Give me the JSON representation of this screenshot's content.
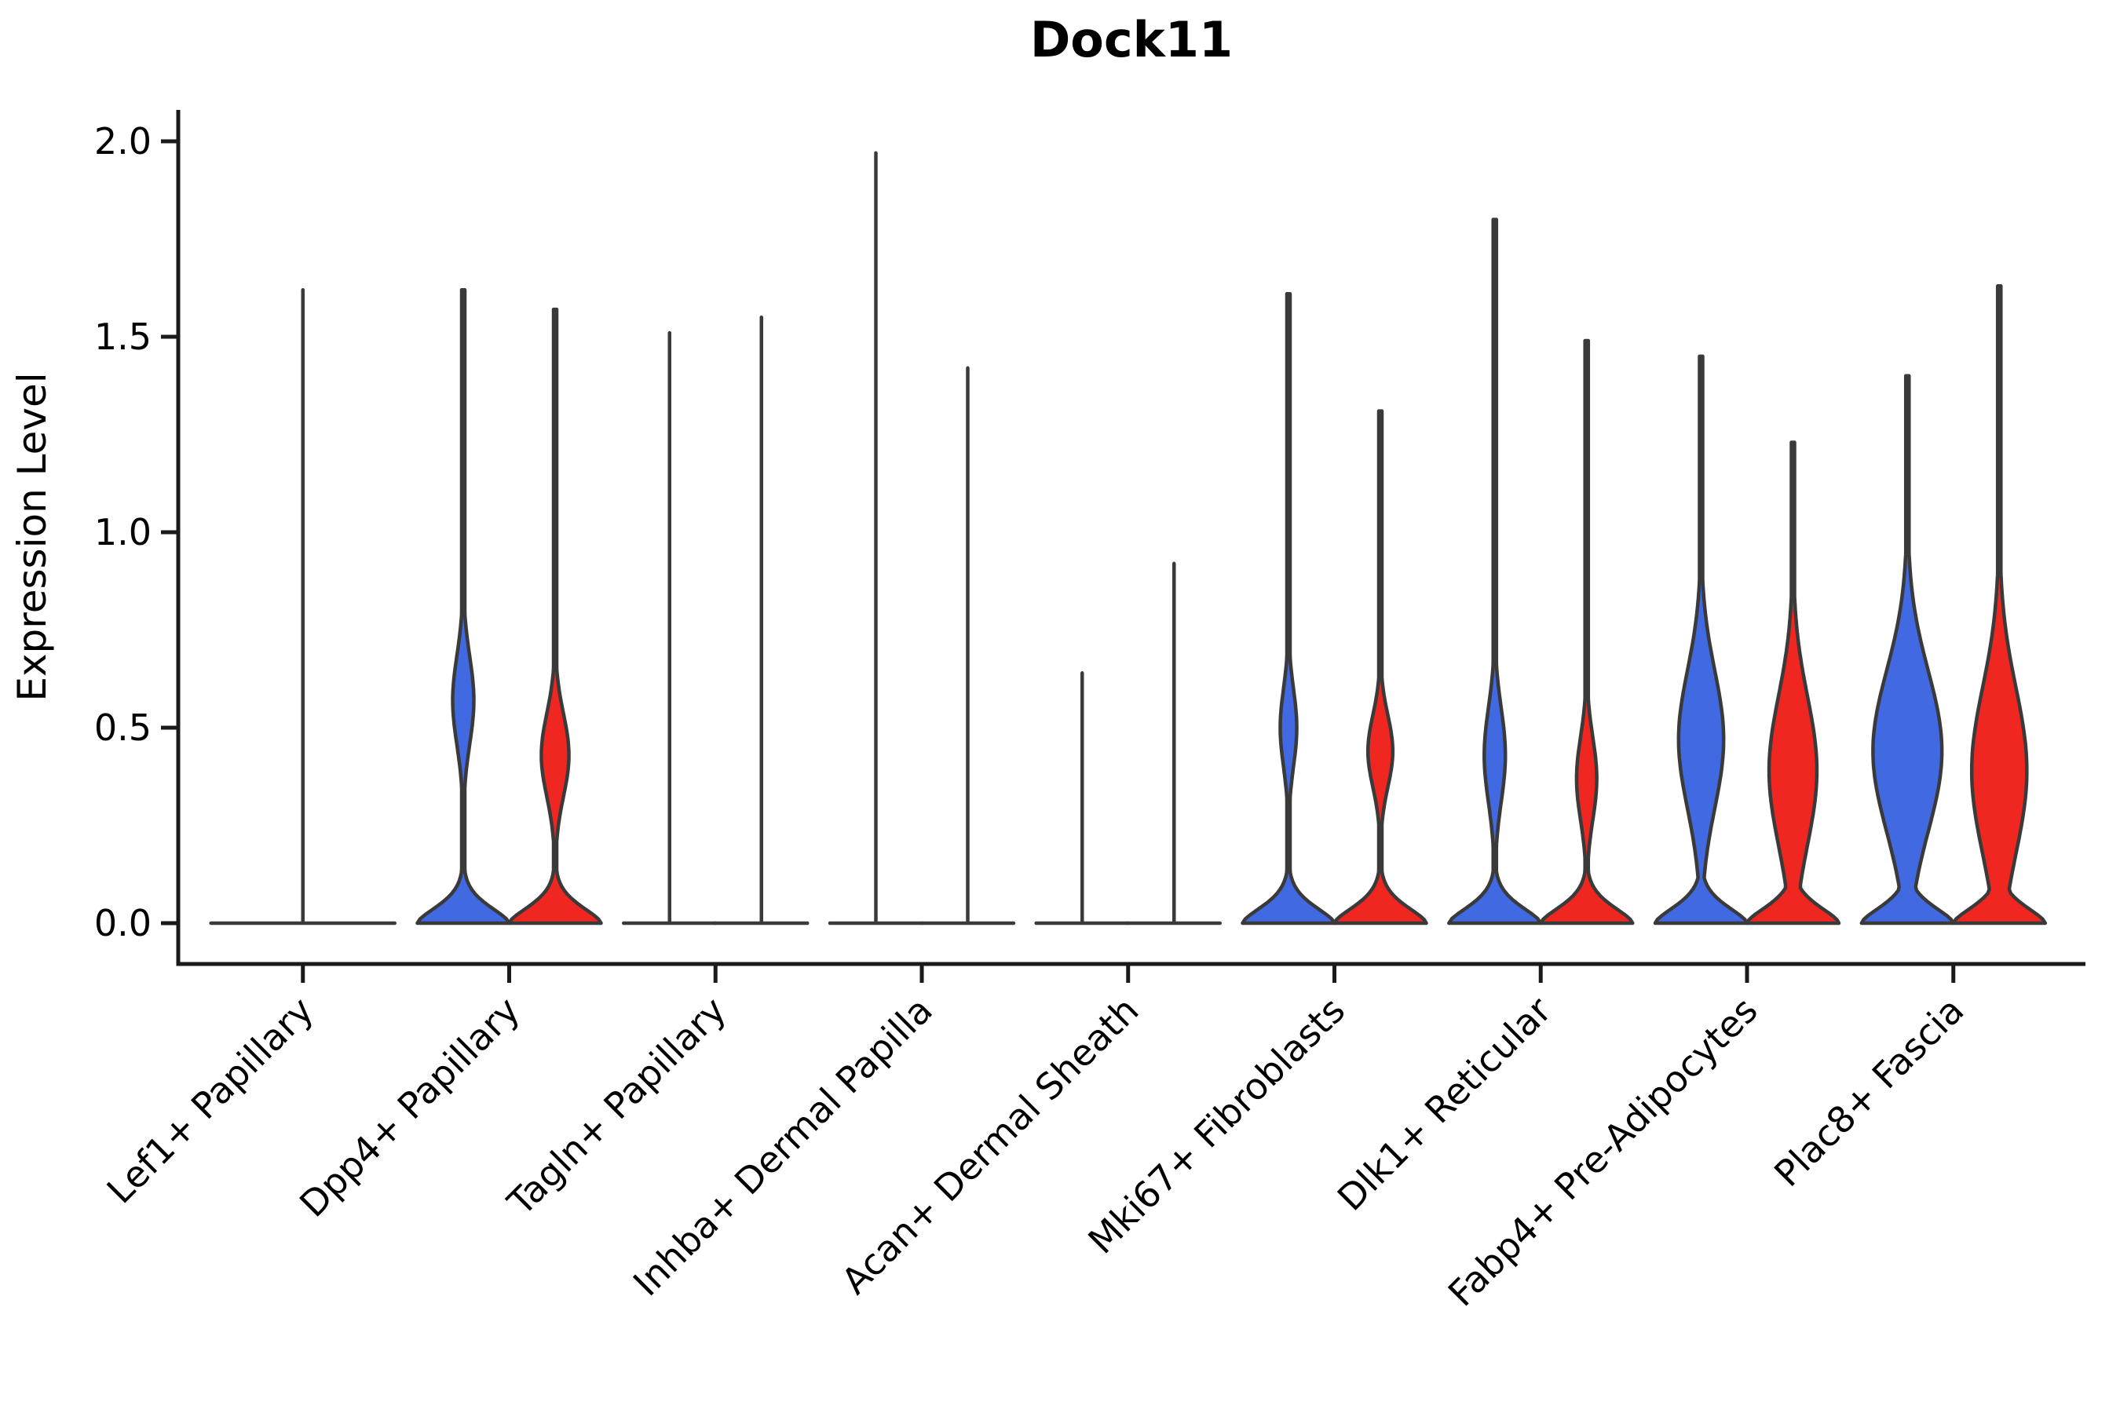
{
  "title": "Dock11",
  "y_axis": {
    "label": "Expression Level",
    "tick_labels": [
      "0.0",
      "0.5",
      "1.0",
      "1.5",
      "2.0"
    ]
  },
  "colors": {
    "condition_blue": "#4169E1",
    "condition_red": "#F02720",
    "outline": "#3A3A3A",
    "axis": "#1a1a1a"
  },
  "chart_data": {
    "type": "violin",
    "title": "Dock11",
    "xlabel": "",
    "ylabel": "Expression Level",
    "ylim": [
      0,
      2.05
    ],
    "yticks": [
      0.0,
      0.5,
      1.0,
      1.5,
      2.0
    ],
    "grid": false,
    "legend": "none",
    "description": "Split violin plot of Dock11 expression per fibroblast cluster; each category has a blue (left) and red (right) condition violin. 'max' is the top of the expression range (thin spike). 'body' describes the density bulge: peak_value = expression at widest point, spread = vertical spread of bulge, rel_width = bulge half-width relative to violin half-width. body=null means the violin is a flat line at 0 with only a thin spike.",
    "categories": [
      "Lef1+ Papillary",
      "Dpp4+ Papillary",
      "Tagln+ Papillary",
      "Inhba+ Dermal Papilla",
      "Acan+ Dermal Sheath",
      "Mki67+ Fibroblasts",
      "Dlk1+ Reticular",
      "Fabp4+ Pre-Adipocytes",
      "Plac8+ Fascia"
    ],
    "groups": [
      {
        "category": "Lef1+ Papillary",
        "violins": [
          {
            "condition": "unsplit",
            "max": 1.62,
            "body": null
          }
        ]
      },
      {
        "category": "Dpp4+ Papillary",
        "violins": [
          {
            "condition": "blue",
            "max": 1.62,
            "body": {
              "peak_value": 0.57,
              "spread": 0.16,
              "rel_width": 0.23
            }
          },
          {
            "condition": "red",
            "max": 1.57,
            "body": {
              "peak_value": 0.43,
              "spread": 0.15,
              "rel_width": 0.3
            }
          }
        ]
      },
      {
        "category": "Tagln+ Papillary",
        "violins": [
          {
            "condition": "blue",
            "max": 1.51,
            "body": null
          },
          {
            "condition": "red",
            "max": 1.55,
            "body": null
          }
        ]
      },
      {
        "category": "Inhba+ Dermal Papilla",
        "violins": [
          {
            "condition": "blue",
            "max": 1.97,
            "body": null
          },
          {
            "condition": "red",
            "max": 1.42,
            "body": null
          }
        ]
      },
      {
        "category": "Acan+ Dermal Sheath",
        "violins": [
          {
            "condition": "blue",
            "max": 0.64,
            "body": null
          },
          {
            "condition": "red",
            "max": 0.92,
            "body": null
          }
        ]
      },
      {
        "category": "Mki67+ Fibroblasts",
        "violins": [
          {
            "condition": "blue",
            "max": 1.61,
            "body": {
              "peak_value": 0.5,
              "spread": 0.14,
              "rel_width": 0.18
            }
          },
          {
            "condition": "red",
            "max": 1.31,
            "body": {
              "peak_value": 0.44,
              "spread": 0.13,
              "rel_width": 0.27
            }
          }
        ]
      },
      {
        "category": "Dlk1+ Reticular",
        "violins": [
          {
            "condition": "blue",
            "max": 1.8,
            "body": {
              "peak_value": 0.43,
              "spread": 0.17,
              "rel_width": 0.23
            }
          },
          {
            "condition": "red",
            "max": 1.49,
            "body": {
              "peak_value": 0.37,
              "spread": 0.15,
              "rel_width": 0.22
            }
          }
        ]
      },
      {
        "category": "Fabp4+ Pre-Adipocytes",
        "violins": [
          {
            "condition": "blue",
            "max": 1.45,
            "body": {
              "peak_value": 0.47,
              "spread": 0.25,
              "rel_width": 0.49
            }
          },
          {
            "condition": "red",
            "max": 1.23,
            "body": {
              "peak_value": 0.39,
              "spread": 0.27,
              "rel_width": 0.52
            }
          }
        ]
      },
      {
        "category": "Plac8+ Fascia",
        "violins": [
          {
            "condition": "blue",
            "max": 1.4,
            "body": {
              "peak_value": 0.44,
              "spread": 0.29,
              "rel_width": 0.75
            }
          },
          {
            "condition": "red",
            "max": 1.63,
            "body": {
              "peak_value": 0.39,
              "spread": 0.3,
              "rel_width": 0.6
            }
          }
        ]
      }
    ]
  }
}
